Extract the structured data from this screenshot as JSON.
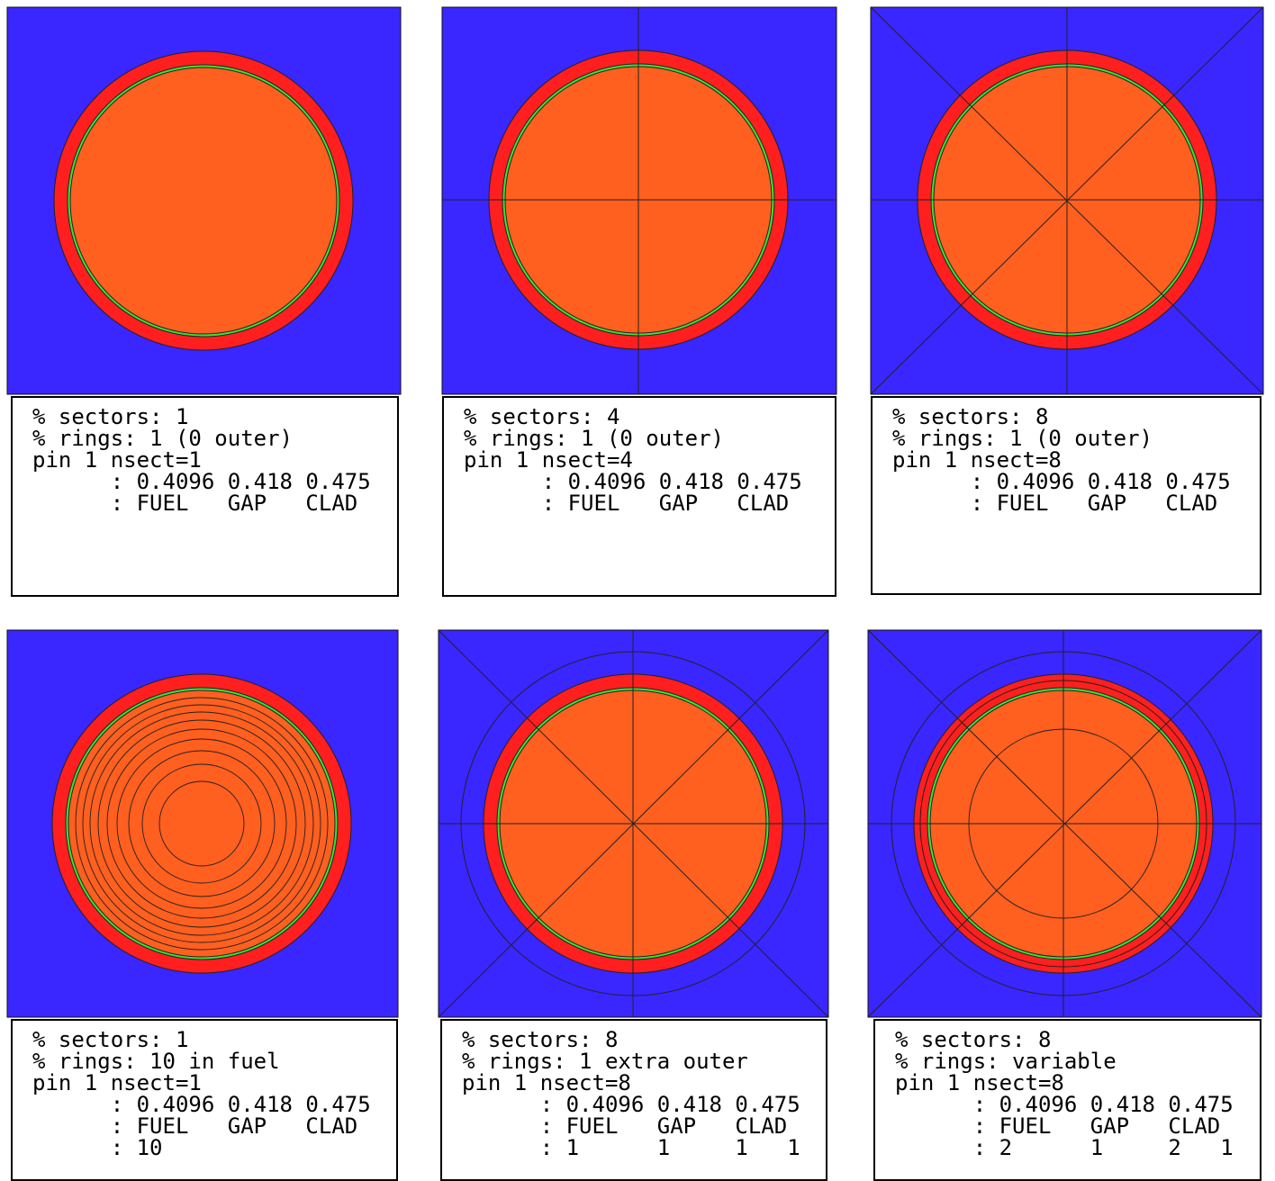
{
  "panels": [
    {
      "lines": [
        "% sectors: 1",
        "% rings: 1 (0 outer)",
        "pin 1 nsect=1",
        "      : 0.4096 0.418 0.475",
        "      : FUEL   GAP   CLAD"
      ]
    },
    {
      "lines": [
        "% sectors: 4",
        "% rings: 1 (0 outer)",
        "pin 1 nsect=4",
        "      : 0.4096 0.418 0.475",
        "      : FUEL   GAP   CLAD"
      ]
    },
    {
      "lines": [
        "% sectors: 8",
        "% rings: 1 (0 outer)",
        "pin 1 nsect=8",
        "      : 0.4096 0.418 0.475",
        "      : FUEL   GAP   CLAD"
      ]
    },
    {
      "lines": [
        "% sectors: 1",
        "% rings: 10 in fuel",
        "pin 1 nsect=1",
        "      : 0.4096 0.418 0.475",
        "      : FUEL   GAP   CLAD",
        "      : 10"
      ]
    },
    {
      "lines": [
        "% sectors: 8",
        "% rings: 1 extra outer",
        "pin 1 nsect=8",
        "      : 0.4096 0.418 0.475",
        "      : FUEL   GAP   CLAD",
        "      : 1      1     1   1"
      ]
    },
    {
      "lines": [
        "% sectors: 8",
        "% rings: variable",
        "pin 1 nsect=8",
        "      : 0.4096 0.418 0.475",
        "      : FUEL   GAP   CLAD",
        "      : 2      1     2   1"
      ]
    }
  ]
}
